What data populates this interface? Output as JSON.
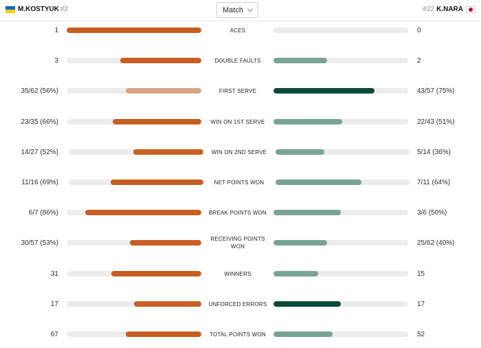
{
  "header": {
    "player1": {
      "name": "M.KOSTYUK",
      "seed": "#2",
      "flag": "ukraine-flag-icon"
    },
    "player2": {
      "name": "K.NARA",
      "seed": "#22",
      "flag": "japan-flag-icon"
    },
    "period_select": {
      "value": "Match"
    }
  },
  "colors": {
    "p1_dark": "#c85e22",
    "p1_light": "#d9a484",
    "p2_dark": "#0b4a39",
    "p2_light": "#79a396",
    "track": "#ececec"
  },
  "stats": [
    {
      "label": "ACES",
      "left": "1",
      "right": "0",
      "left_fraction": 1.0,
      "right_fraction": 0.0,
      "leader": "left"
    },
    {
      "label": "DOUBLE FAULTS",
      "left": "3",
      "right": "2",
      "left_fraction": 0.6,
      "right_fraction": 0.4,
      "leader": "left"
    },
    {
      "label": "FIRST SERVE",
      "left": "35/62 (56%)",
      "right": "43/57 (75%)",
      "left_fraction": 0.56,
      "right_fraction": 0.75,
      "leader": "right"
    },
    {
      "label": "WIN ON 1ST SERVE",
      "left": "23/35 (66%)",
      "right": "22/43 (51%)",
      "left_fraction": 0.66,
      "right_fraction": 0.51,
      "leader": "left"
    },
    {
      "label": "WIN ON 2ND SERVE",
      "left": "14/27 (52%)",
      "right": "5/14 (36%)",
      "left_fraction": 0.52,
      "right_fraction": 0.36,
      "leader": "left"
    },
    {
      "label": "NET POINTS WON",
      "left": "11/16 (69%)",
      "right": "7/11 (64%)",
      "left_fraction": 0.69,
      "right_fraction": 0.64,
      "leader": "left"
    },
    {
      "label": "BREAK POINTS WON",
      "left": "6/7 (86%)",
      "right": "3/6 (50%)",
      "left_fraction": 0.86,
      "right_fraction": 0.5,
      "leader": "left"
    },
    {
      "label": "RECEIVING POINTS WON",
      "left": "30/57 (53%)",
      "right": "25/62 (40%)",
      "left_fraction": 0.53,
      "right_fraction": 0.4,
      "leader": "left"
    },
    {
      "label": "WINNERS",
      "left": "31",
      "right": "15",
      "left_fraction": 0.67,
      "right_fraction": 0.33,
      "leader": "left"
    },
    {
      "label": "UNFORCED ERRORS",
      "left": "17",
      "right": "17",
      "left_fraction": 0.5,
      "right_fraction": 0.5,
      "leader": "both"
    },
    {
      "label": "TOTAL POINTS WON",
      "left": "67",
      "right": "52",
      "left_fraction": 0.56,
      "right_fraction": 0.44,
      "leader": "left"
    }
  ]
}
